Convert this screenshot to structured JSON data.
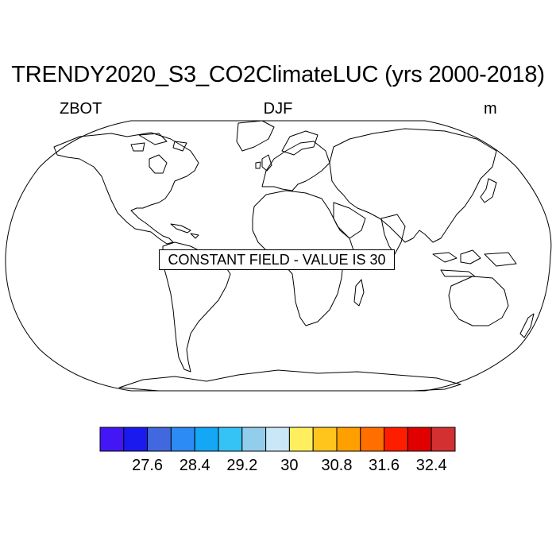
{
  "title": "TRENDY2020_S3_CO2ClimateLUC (yrs 2000-2018)",
  "variable": "ZBOT",
  "season": "DJF",
  "units": "m",
  "map": {
    "projection": "Robinson",
    "annotation": "CONSTANT FIELD - VALUE IS 30"
  },
  "colorbar": {
    "colors": [
      "#4317f5",
      "#1a1aef",
      "#4168de",
      "#2c8bf5",
      "#13a7f5",
      "#35c2f5",
      "#92cdec",
      "#c9e7f7",
      "#ffef5f",
      "#ffc51d",
      "#ffa000",
      "#ff6f00",
      "#ff1d00",
      "#e00000",
      "#d23031"
    ],
    "tick_labels": [
      "27.6",
      "28.4",
      "29.2",
      "30",
      "30.8",
      "31.6",
      "32.4"
    ]
  }
}
